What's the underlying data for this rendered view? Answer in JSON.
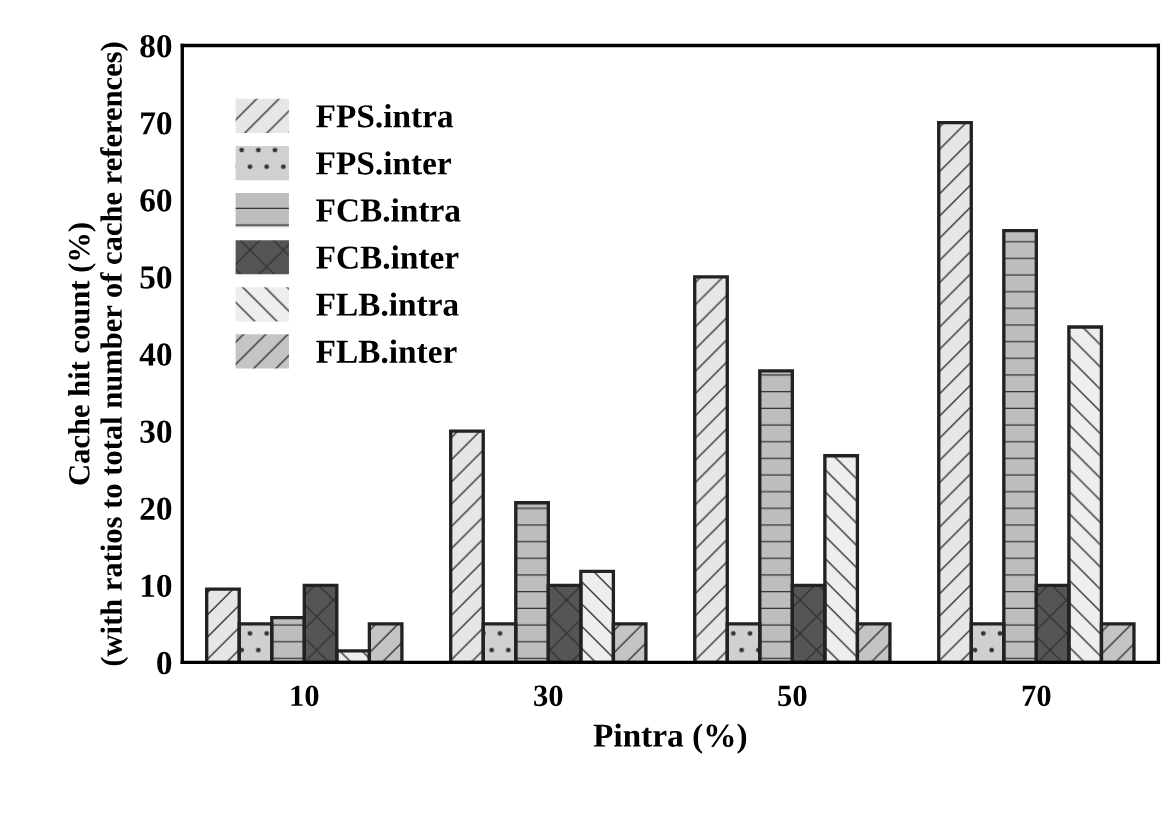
{
  "chart_data": {
    "type": "bar",
    "xlabel": "Pintra (%)",
    "ylabel": "Cache hit count (%)\n(with ratios to total number of cache references)",
    "categories": [
      "10",
      "30",
      "50",
      "70"
    ],
    "series": [
      {
        "name": "FPS.intra",
        "color": "#e6e6e6",
        "values": [
          9.5,
          30,
          50,
          70
        ]
      },
      {
        "name": "FPS.inter",
        "color": "#d0d0d0",
        "values": [
          5,
          5,
          5,
          5
        ]
      },
      {
        "name": "FCB.intra",
        "color": "#bdbdbd",
        "values": [
          5.8,
          20.7,
          37.8,
          56
        ]
      },
      {
        "name": "FCB.inter",
        "color": "#555555",
        "values": [
          10,
          10,
          10,
          10
        ]
      },
      {
        "name": "FLB.intra",
        "color": "#eeeeee",
        "values": [
          1.5,
          11.8,
          26.8,
          43.5
        ]
      },
      {
        "name": "FLB.inter",
        "color": "#c4c4c4",
        "values": [
          5,
          5,
          5,
          5
        ]
      }
    ],
    "ylim": [
      0,
      80
    ],
    "yticks": [
      0,
      10,
      20,
      30,
      40,
      50,
      60,
      70,
      80
    ],
    "grid": false,
    "legend": "top left"
  }
}
